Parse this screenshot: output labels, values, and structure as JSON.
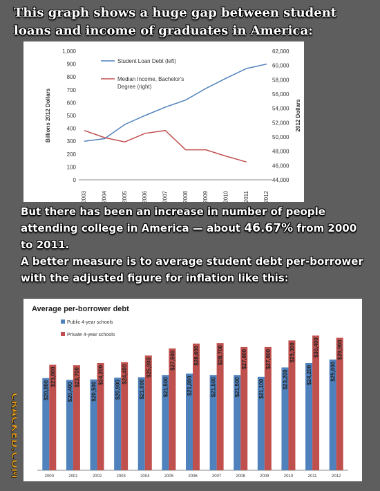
{
  "headline": "This graph shows a huge gap between student loans and income of graduates in America:",
  "mid_text": {
    "line1": "But there has been an increase in number of people attending college in America — about ",
    "highlight": "46.67%",
    "line1_end": " from 2000 to 2011.",
    "line2": "A better measure is to average student debt per-borrower with the adjusted figure for inflation like this:"
  },
  "watermark": "CRACKED.COM",
  "colors": {
    "blue": "#4f81bd",
    "red": "#c0504d"
  },
  "chart_data": [
    {
      "type": "line",
      "x": [
        "2003",
        "2004",
        "2005",
        "2006",
        "2007",
        "2008",
        "2009",
        "2010",
        "2011",
        "2012"
      ],
      "series": [
        {
          "name": "Student Loan Debt (left)",
          "axis": "left",
          "color": "#4f81bd",
          "values": [
            300,
            320,
            430,
            500,
            565,
            620,
            710,
            790,
            865,
            900
          ]
        },
        {
          "name": "Median Income, Bachelor's Degree (right)",
          "axis": "right",
          "color": "#c0504d",
          "values": [
            50900,
            49900,
            49300,
            50500,
            50900,
            48200,
            48200,
            47300,
            46500,
            null
          ]
        }
      ],
      "ylabel": "Billions 2012 Dollars",
      "y2label": "2012 Dollars",
      "ylim": [
        0,
        1000
      ],
      "y2lim": [
        44000,
        62000
      ],
      "yticks": [
        "0",
        "100",
        "200",
        "300",
        "400",
        "500",
        "600",
        "700",
        "800",
        "900",
        "1,000"
      ],
      "y2ticks": [
        "44,000",
        "46,000",
        "48,000",
        "50,000",
        "52,000",
        "54,000",
        "56,000",
        "58,000",
        "60,000",
        "62,000"
      ],
      "legend_position": "top-left",
      "grid": false
    },
    {
      "type": "bar",
      "title": "Average per-borrower debt",
      "categories": [
        "2000",
        "2001",
        "2002",
        "2003",
        "2004",
        "2005",
        "2006",
        "2007",
        "2008",
        "2009",
        "2010",
        "2011",
        "2012"
      ],
      "series": [
        {
          "name": "Public 4-year schools",
          "color": "#4f81bd",
          "values": [
            20800,
            20400,
            20500,
            20900,
            21000,
            21500,
            21800,
            21500,
            21500,
            21100,
            23200,
            24200,
            25000
          ]
        },
        {
          "name": "Private 4-year schools",
          "color": "#c0504d",
          "values": [
            23800,
            23700,
            24200,
            24400,
            25900,
            27500,
            28600,
            28700,
            27800,
            27800,
            29300,
            30400,
            29900
          ]
        }
      ],
      "labels_public": [
        "$20,800",
        "$20,400",
        "$20,500",
        "$20,900",
        "$21,000",
        "$21,500",
        "$21,800",
        "$21,500",
        "$21,500",
        "$21,100",
        "$23,200",
        "$24,200",
        "$25,000"
      ],
      "labels_private": [
        "$23,800",
        "$23,700",
        "$24,200",
        "$24,400",
        "$25,900",
        "$27,500",
        "$28,600",
        "$28,700",
        "$27,800",
        "$27,800",
        "$29,300",
        "$30,400",
        "$29,900"
      ],
      "ylim": [
        0,
        32000
      ],
      "legend_position": "top-left",
      "grid": false
    }
  ]
}
